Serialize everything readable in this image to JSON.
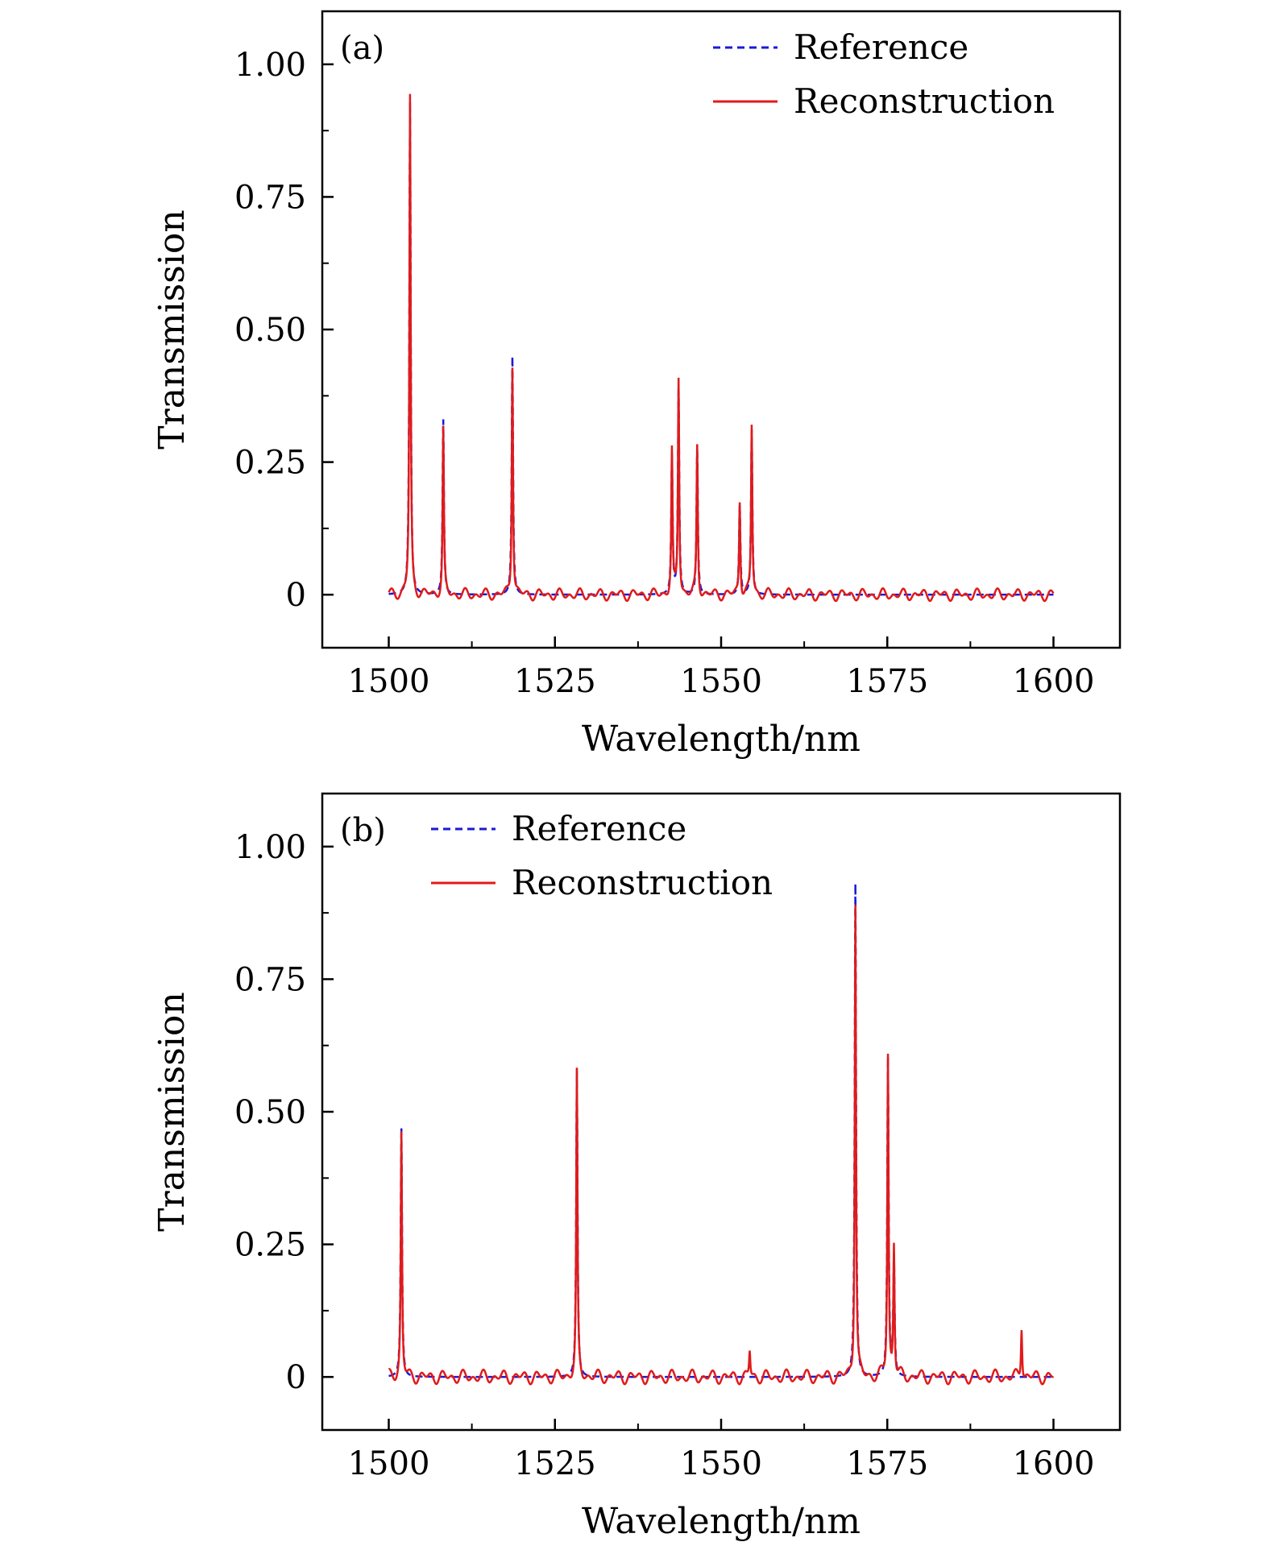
{
  "chart_data": [
    {
      "type": "line",
      "panel_label": "(a)",
      "xlabel": "Wavelength/nm",
      "ylabel": "Transmission",
      "xlim": [
        1490,
        1610
      ],
      "ylim": [
        -0.1,
        1.1
      ],
      "xticks": [
        1500,
        1525,
        1550,
        1575,
        1600
      ],
      "xtick_labels": [
        "1500",
        "1525",
        "1550",
        "1575",
        "1600"
      ],
      "yticks": [
        0,
        0.25,
        0.5,
        0.75,
        1.0
      ],
      "ytick_labels": [
        "0",
        "0.25",
        "0.50",
        "0.75",
        "1.00"
      ],
      "legend_position": "top-right",
      "legend": [
        {
          "name": "Reference",
          "color": "#1a1ad6",
          "style": "dashed"
        },
        {
          "name": "Reconstruction",
          "color": "#e01b1b",
          "style": "solid"
        }
      ],
      "peaks": [
        {
          "x": 1503.2,
          "reference": 0.93,
          "reconstruction": 0.94
        },
        {
          "x": 1508.2,
          "reference": 0.33,
          "reconstruction": 0.31
        },
        {
          "x": 1518.6,
          "reference": 0.45,
          "reconstruction": 0.44
        },
        {
          "x": 1542.6,
          "reference": 0.26,
          "reconstruction": 0.27
        },
        {
          "x": 1543.6,
          "reference": 0.39,
          "reconstruction": 0.41
        },
        {
          "x": 1546.4,
          "reference": 0.28,
          "reconstruction": 0.28
        },
        {
          "x": 1552.8,
          "reference": 0.17,
          "reconstruction": 0.18
        },
        {
          "x": 1554.6,
          "reference": 0.31,
          "reconstruction": 0.32
        }
      ],
      "ripple_amplitude": 0.012,
      "x_range": [
        1500,
        1600
      ]
    },
    {
      "type": "line",
      "panel_label": "(b)",
      "xlabel": "Wavelength/nm",
      "ylabel": "Transmission",
      "xlim": [
        1490,
        1610
      ],
      "ylim": [
        -0.1,
        1.1
      ],
      "xticks": [
        1500,
        1525,
        1550,
        1575,
        1600
      ],
      "xtick_labels": [
        "1500",
        "1525",
        "1550",
        "1575",
        "1600"
      ],
      "yticks": [
        0,
        0.25,
        0.5,
        0.75,
        1.0
      ],
      "ytick_labels": [
        "0",
        "0.25",
        "0.50",
        "0.75",
        "1.00"
      ],
      "legend_position": "top-left",
      "legend": [
        {
          "name": "Reference",
          "color": "#1a1ad6",
          "style": "dashed"
        },
        {
          "name": "Reconstruction",
          "color": "#e01b1b",
          "style": "solid"
        }
      ],
      "peaks": [
        {
          "x": 1501.9,
          "reference": 0.47,
          "reconstruction": 0.46
        },
        {
          "x": 1528.3,
          "reference": 0.58,
          "reconstruction": 0.57
        },
        {
          "x": 1554.3,
          "reference": 0.0,
          "reconstruction": 0.05
        },
        {
          "x": 1570.2,
          "reference": 0.93,
          "reconstruction": 0.9
        },
        {
          "x": 1575.1,
          "reference": 0.6,
          "reconstruction": 0.61
        },
        {
          "x": 1576.0,
          "reference": 0.22,
          "reconstruction": 0.25
        },
        {
          "x": 1595.2,
          "reference": 0.0,
          "reconstruction": 0.1
        }
      ],
      "ripple_amplitude": 0.014,
      "x_range": [
        1500,
        1600
      ]
    }
  ]
}
